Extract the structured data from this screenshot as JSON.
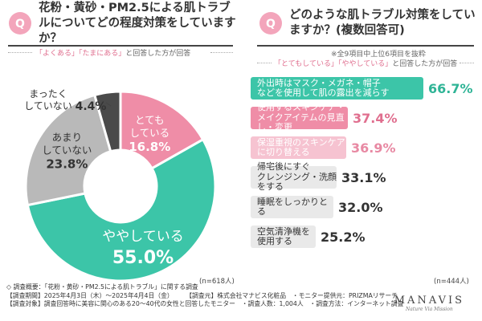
{
  "left": {
    "question": "花粉・黄砂・PM2.5による肌トラブルについてどの程度対策をしていますか？",
    "note_quote1": "「よくある」",
    "note_quote2": "「たまにある」",
    "note_suffix": "と回答した方が回答",
    "n": "(n=618人)"
  },
  "right": {
    "question": "どのような肌トラブル対策をしていますか？(複数回答可)",
    "extract_note": "※全9項目中上位6項目を抜粋",
    "note_quote1": "「とてもしている」",
    "note_quote2": "「ややしている」",
    "note_suffix": "と回答した方が回答",
    "n": "(n=444人)"
  },
  "chart_data": [
    {
      "type": "pie",
      "categories": [
        "とてもしている",
        "ややしている",
        "あまりしていない",
        "まったくしていない"
      ],
      "values": [
        16.8,
        55.0,
        23.8,
        4.4
      ],
      "labels": [
        "16.8%",
        "55.0%",
        "23.8%",
        "4.4%"
      ],
      "colors": [
        "#ef8da7",
        "#3cc5a8",
        "#b9b9b9",
        "#4a4a4a"
      ]
    },
    {
      "type": "bar",
      "categories": [
        "外出時はマスク・メガネ・帽子などを使用して肌の露出を減らす",
        "使用するスキンケア・メイクアイテムの見直し・変更",
        "保湿重視のスキンケアに切り替える",
        "帰宅後にすぐクレンジング・洗顔をする",
        "睡眠をしっかりとる",
        "空気清浄機を使用する"
      ],
      "values": [
        66.7,
        37.4,
        36.9,
        33.1,
        32.0,
        25.2
      ],
      "labels": [
        "66.7%",
        "37.4%",
        "36.9%",
        "33.1%",
        "32.0%",
        "25.2%"
      ],
      "colors": [
        "#3cc5a8",
        "#ef8da7",
        "#f6c3d1",
        "#e9e9e9",
        "#e9e9e9",
        "#e9e9e9"
      ],
      "text_colors": [
        "#ffffff",
        "#ffffff",
        "#ffffff",
        "#333333",
        "#333333",
        "#333333"
      ],
      "value_colors": [
        "#2fb496",
        "#e06f8f",
        "#e889a3",
        "#333333",
        "#333333",
        "#333333"
      ]
    }
  ],
  "footer": {
    "line1": "◇ 調査概要：「花粉・黄砂・PM2.5による肌トラブル」に関する調査",
    "line2": "【調査期間】2025年4月3日（木）〜2025年4月4日（金）　　　【調査元】株式会社マナビス化粧品　・モニター提供元：PRIZMAリサーチ",
    "line3": "【調査対象】調査回答時に美容に関心のある20〜40代の女性と回答したモニター　・調査人数：1,004人　・調査方法：インターネット調査"
  },
  "logo": {
    "name": "MANAVIS",
    "tagline": "Nature Via Mission"
  }
}
